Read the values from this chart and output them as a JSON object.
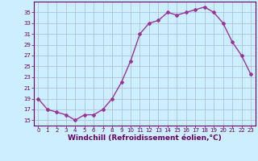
{
  "x": [
    0,
    1,
    2,
    3,
    4,
    5,
    6,
    7,
    8,
    9,
    10,
    11,
    12,
    13,
    14,
    15,
    16,
    17,
    18,
    19,
    20,
    21,
    22,
    23
  ],
  "y": [
    19,
    17,
    16.5,
    16,
    15,
    16,
    16,
    17,
    19,
    22,
    26,
    31,
    33,
    33.5,
    35,
    34.5,
    35,
    35.5,
    36,
    35,
    33,
    29.5,
    27,
    23.5
  ],
  "line_color": "#993399",
  "marker": "D",
  "marker_size": 2.0,
  "xlabel": "Windchill (Refroidissement éolien,°C)",
  "xlabel_fontsize": 6.5,
  "xlim": [
    -0.5,
    23.5
  ],
  "ylim": [
    14,
    37
  ],
  "yticks": [
    15,
    17,
    19,
    21,
    23,
    25,
    27,
    29,
    31,
    33,
    35
  ],
  "xticks": [
    0,
    1,
    2,
    3,
    4,
    5,
    6,
    7,
    8,
    9,
    10,
    11,
    12,
    13,
    14,
    15,
    16,
    17,
    18,
    19,
    20,
    21,
    22,
    23
  ],
  "bg_color": "#cceeff",
  "grid_color": "#aabbcc",
  "tick_color": "#660066",
  "label_color": "#660066",
  "line_width": 1.0
}
